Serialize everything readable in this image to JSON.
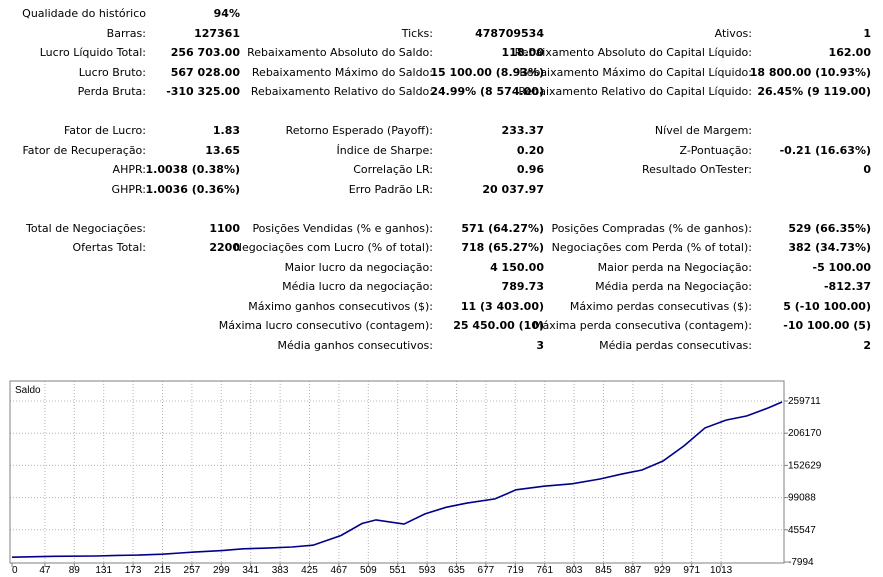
{
  "report": {
    "rows": [
      {
        "row": 0,
        "cells": [
          {
            "col": "a",
            "label": "Qualidade do histórico",
            "value": "94%"
          }
        ]
      },
      {
        "row": 1,
        "cells": [
          {
            "col": "a",
            "label": "Barras:",
            "value": "127361"
          },
          {
            "col": "b",
            "label": "Ticks:",
            "value": "478709534"
          },
          {
            "col": "c",
            "label": "Ativos:",
            "value": "1"
          }
        ]
      },
      {
        "row": 2,
        "cells": [
          {
            "col": "a",
            "label": "Lucro Líquido Total:",
            "value": "256 703.00"
          },
          {
            "col": "b",
            "label": "Rebaixamento Absoluto do Saldo:",
            "value": "118.00"
          },
          {
            "col": "c",
            "label": "Rebaixamento Absoluto do Capital Líquido:",
            "value": "162.00"
          }
        ]
      },
      {
        "row": 3,
        "cells": [
          {
            "col": "a",
            "label": "Lucro Bruto:",
            "value": "567 028.00"
          },
          {
            "col": "b",
            "label": "Rebaixamento Máximo do Saldo:",
            "value": "15 100.00 (8.93%)"
          },
          {
            "col": "c",
            "label": "Rebaixamento Máximo do Capital Líquido:",
            "value": "18 800.00 (10.93%)"
          }
        ]
      },
      {
        "row": 4,
        "cells": [
          {
            "col": "a",
            "label": "Perda Bruta:",
            "value": "-310 325.00"
          },
          {
            "col": "b",
            "label": "Rebaixamento Relativo do Saldo:",
            "value": "24.99% (8 574.00)"
          },
          {
            "col": "c",
            "label": "Rebaixamento Relativo do Capital Líquido:",
            "value": "26.45% (9 119.00)"
          }
        ]
      },
      {
        "row": 6,
        "cells": [
          {
            "col": "a",
            "label": "Fator de Lucro:",
            "value": "1.83"
          },
          {
            "col": "b",
            "label": "Retorno Esperado (Payoff):",
            "value": "233.37"
          },
          {
            "col": "c",
            "label": "Nível de Margem:",
            "value": ""
          }
        ]
      },
      {
        "row": 7,
        "cells": [
          {
            "col": "a",
            "label": "Fator de Recuperação:",
            "value": "13.65"
          },
          {
            "col": "b",
            "label": "Índice de Sharpe:",
            "value": "0.20"
          },
          {
            "col": "c",
            "label": "Z-Pontuação:",
            "value": "-0.21 (16.63%)"
          }
        ]
      },
      {
        "row": 8,
        "cells": [
          {
            "col": "a",
            "label": "AHPR:",
            "value": "1.0038 (0.38%)"
          },
          {
            "col": "b",
            "label": "Correlação LR:",
            "value": "0.96"
          },
          {
            "col": "c",
            "label": "Resultado OnTester:",
            "value": "0"
          }
        ]
      },
      {
        "row": 9,
        "cells": [
          {
            "col": "a",
            "label": "GHPR:",
            "value": "1.0036 (0.36%)"
          },
          {
            "col": "b",
            "label": "Erro Padrão LR:",
            "value": "20 037.97"
          }
        ]
      },
      {
        "row": 11,
        "cells": [
          {
            "col": "a",
            "label": "Total de Negociações:",
            "value": "1100"
          },
          {
            "col": "b",
            "label": "Posições Vendidas (% e ganhos):",
            "value": "571 (64.27%)"
          },
          {
            "col": "c",
            "label": "Posições Compradas (% de ganhos):",
            "value": "529 (66.35%)"
          }
        ]
      },
      {
        "row": 12,
        "cells": [
          {
            "col": "a",
            "label": "Ofertas Total:",
            "value": "2200"
          },
          {
            "col": "b",
            "label": "Negociações com Lucro (% of total):",
            "value": "718 (65.27%)"
          },
          {
            "col": "c",
            "label": "Negociações com Perda (% of total):",
            "value": "382 (34.73%)"
          }
        ]
      },
      {
        "row": 13,
        "cells": [
          {
            "col": "b",
            "label": "Maior lucro da negociação:",
            "value": "4 150.00"
          },
          {
            "col": "c",
            "label": "Maior perda na Negociação:",
            "value": "-5 100.00"
          }
        ]
      },
      {
        "row": 14,
        "cells": [
          {
            "col": "b",
            "label": "Média lucro da negociação:",
            "value": "789.73"
          },
          {
            "col": "c",
            "label": "Média perda na Negociação:",
            "value": "-812.37"
          }
        ]
      },
      {
        "row": 15,
        "cells": [
          {
            "col": "b",
            "label": "Máximo ganhos consecutivos ($):",
            "value": "11 (3 403.00)"
          },
          {
            "col": "c",
            "label": "Máximo perdas consecutivas ($):",
            "value": "5 (-10 100.00)"
          }
        ]
      },
      {
        "row": 16,
        "cells": [
          {
            "col": "b",
            "label": "Máxima lucro consecutivo (contagem):",
            "value": "25 450.00 (10)"
          },
          {
            "col": "c",
            "label": "Máxima perda consecutiva (contagem):",
            "value": "-10 100.00 (5)"
          }
        ]
      },
      {
        "row": 17,
        "cells": [
          {
            "col": "b",
            "label": "Média ganhos consecutivos:",
            "value": "3"
          },
          {
            "col": "c",
            "label": "Média perdas consecutivas:",
            "value": "2"
          }
        ]
      }
    ]
  },
  "chart_data": {
    "type": "line",
    "title": "Saldo",
    "xlabel": "",
    "ylabel": "",
    "x_ticks": [
      0,
      47,
      89,
      131,
      173,
      215,
      257,
      299,
      341,
      383,
      425,
      467,
      509,
      551,
      593,
      635,
      677,
      719,
      761,
      803,
      845,
      887,
      929,
      971,
      1013
    ],
    "y_ticks": [
      -7994,
      45547,
      99088,
      152629,
      206170,
      259711
    ],
    "xlim": [
      0,
      1100
    ],
    "ylim": [
      -7994,
      259711
    ],
    "grid": true,
    "series": [
      {
        "values_x": [
          0,
          60,
          120,
          150,
          180,
          215,
          240,
          260,
          300,
          330,
          360,
          400,
          430,
          470,
          500,
          520,
          560,
          590,
          620,
          650,
          690,
          720,
          760,
          800,
          840,
          870,
          900,
          930,
          960,
          990,
          1020,
          1050,
          1080,
          1100
        ],
        "values_y": [
          0,
          1500,
          2000,
          3000,
          3500,
          5000,
          7000,
          8500,
          11000,
          14000,
          15000,
          17000,
          20000,
          36000,
          56000,
          62000,
          55000,
          72000,
          83000,
          90000,
          97000,
          112000,
          118000,
          122000,
          130000,
          138000,
          145000,
          160000,
          185000,
          215000,
          228000,
          235000,
          248000,
          258000
        ]
      }
    ],
    "colors": {
      "line": "#00008b",
      "grid": "#b4b4b4",
      "frame": "#808080",
      "background": "#ffffff"
    }
  }
}
